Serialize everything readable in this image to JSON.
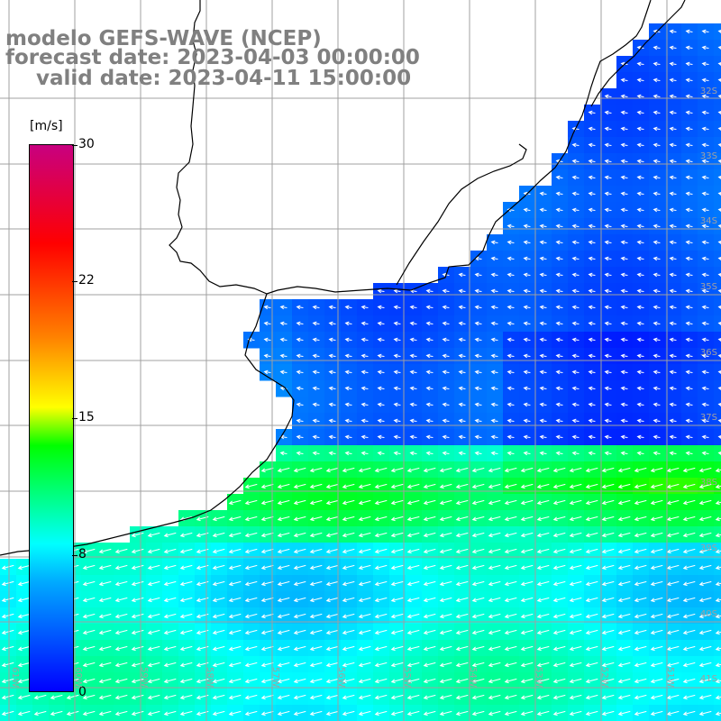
{
  "title": {
    "line1": "modelo GEFS-WAVE (NCEP)",
    "line2": "forecast date: 2023-04-03 00:00:00",
    "line3": "valid date: 2023-04-11 15:00:00"
  },
  "colorbar": {
    "unit": "[m/s]",
    "ticks": [
      "30",
      "22",
      "15",
      "8",
      "0"
    ],
    "colors": [
      "#0000ff",
      "#00aaff",
      "#00ffff",
      "#00ff00",
      "#ffff00",
      "#ff8000",
      "#ff0000",
      "#c80080"
    ]
  },
  "lat_labels": [
    "32S",
    "33S",
    "34S",
    "35S",
    "36S",
    "37S",
    "38S",
    "39S",
    "40S",
    "41S"
  ],
  "lon_labels": [
    "61W",
    "60W",
    "59W",
    "58W",
    "57W",
    "56W",
    "55W",
    "54W",
    "53W",
    "52W",
    "51W"
  ],
  "map": {
    "field": "wind speed (m/s) with wind direction arrows",
    "land_color": "#ffffff",
    "coast_color": "#000000",
    "grid_color": "#a0a0a0",
    "arrow_color": "#ffffff"
  }
}
